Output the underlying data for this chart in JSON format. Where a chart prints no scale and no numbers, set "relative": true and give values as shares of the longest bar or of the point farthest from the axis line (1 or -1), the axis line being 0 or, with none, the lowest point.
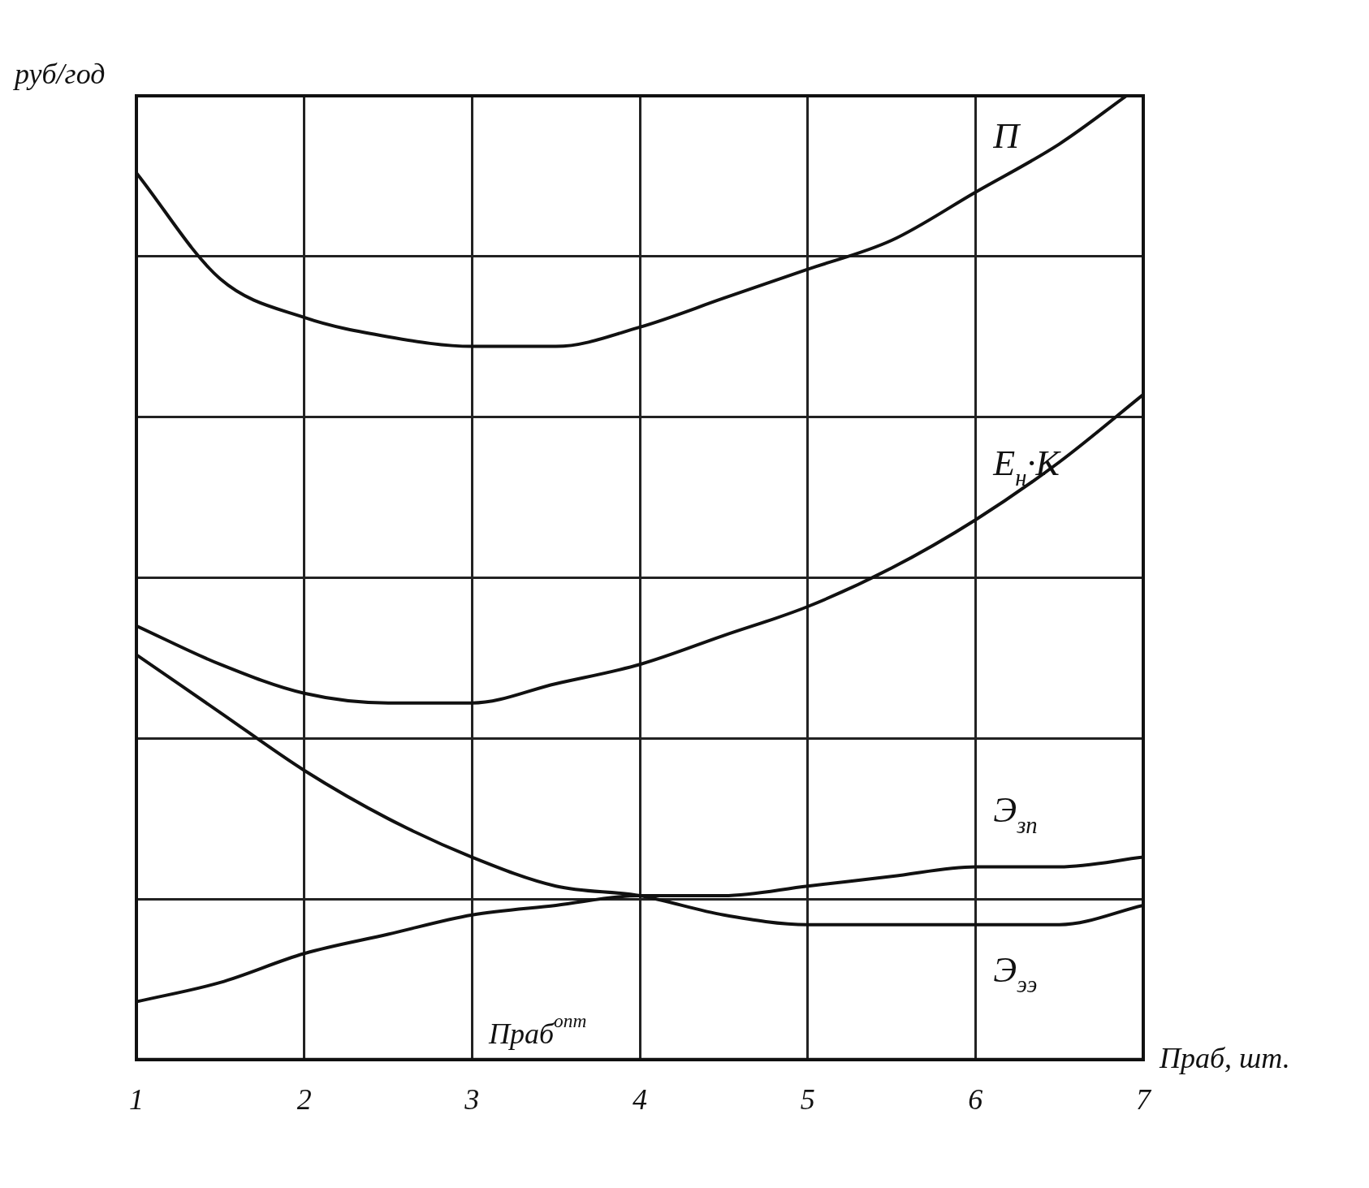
{
  "chart_data": {
    "type": "line",
    "relative": true,
    "xlabel": "Праб, шт.",
    "ylabel": "руб/год",
    "annotations": [
      "Праб$^{опт}$"
    ],
    "xlim": [
      1,
      7
    ],
    "xticks": [
      1,
      2,
      3,
      4,
      5,
      6,
      7
    ],
    "grid": true,
    "legend": false,
    "marker": "none",
    "line_style": "solid",
    "series": [
      {
        "name": "П",
        "color": "#111111",
        "x": [
          1,
          1.5,
          2,
          2.5,
          3,
          3.5,
          4,
          4.5,
          5,
          5.5,
          6,
          6.5,
          6.9
        ],
        "values": [
          0.92,
          0.81,
          0.77,
          0.75,
          0.74,
          0.74,
          0.76,
          0.79,
          0.82,
          0.85,
          0.9,
          0.95,
          1
        ]
      },
      {
        "name": "E$_{н}$·K",
        "color": "#111111",
        "x": [
          1,
          1.5,
          2,
          2.5,
          3,
          3.5,
          4,
          4.5,
          5,
          5.5,
          6,
          6.5,
          7
        ],
        "values": [
          0.45,
          0.41,
          0.38,
          0.37,
          0.37,
          0.39,
          0.41,
          0.44,
          0.47,
          0.51,
          0.56,
          0.62,
          0.69
        ]
      },
      {
        "name": "Э$_{зп}$",
        "color": "#111111",
        "x": [
          1,
          1.5,
          2,
          2.5,
          3,
          3.5,
          4,
          4.5,
          5,
          5.5,
          6,
          6.5,
          7
        ],
        "values": [
          0.06,
          0.08,
          0.11,
          0.13,
          0.15,
          0.16,
          0.17,
          0.17,
          0.18,
          0.19,
          0.2,
          0.2,
          0.21
        ]
      },
      {
        "name": "Э$_{ээ}$",
        "color": "#111111",
        "x": [
          1,
          1.5,
          2,
          2.5,
          3,
          3.5,
          4,
          4.5,
          5,
          5.5,
          6,
          6.5,
          7
        ],
        "values": [
          0.42,
          0.36,
          0.3,
          0.25,
          0.21,
          0.18,
          0.17,
          0.15,
          0.14,
          0.14,
          0.14,
          0.14,
          0.16
        ]
      }
    ]
  }
}
